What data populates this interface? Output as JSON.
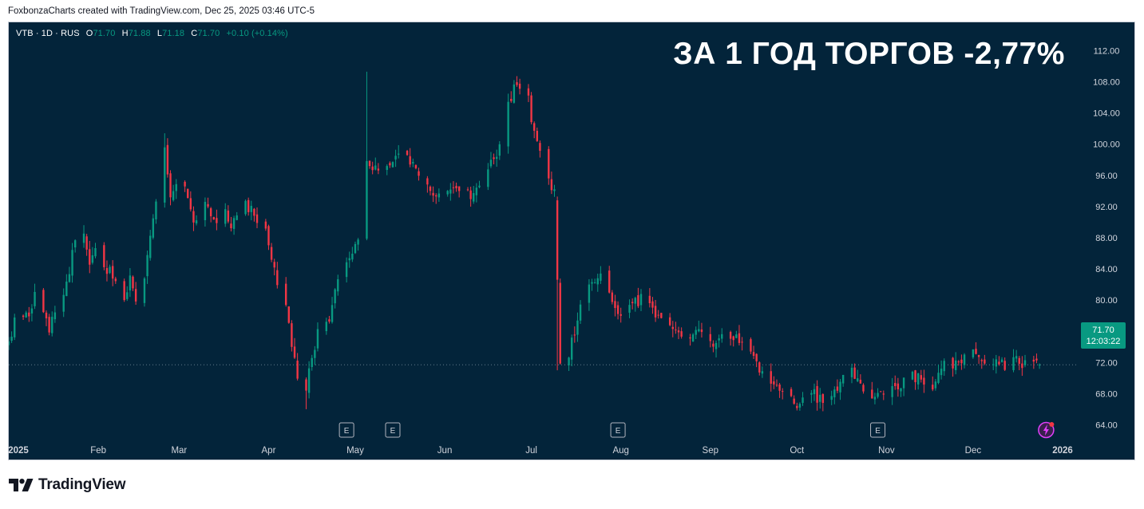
{
  "credit": "FoxbonzaCharts created with TradingView.com, Dec 25, 2025 03:46 UTC-5",
  "legend": {
    "symbol": "VTB · 1D · RUS",
    "o_label": "O",
    "o_value": "71.70",
    "h_label": "H",
    "h_value": "71.88",
    "l_label": "L",
    "l_value": "71.18",
    "c_label": "C",
    "c_value": "71.70",
    "change": "+0.10 (+0.14%)"
  },
  "headline": "ЗА 1 ГОД ТОРГОВ -2,77%",
  "last_price": {
    "price": "71.70",
    "countdown": "12:03:22"
  },
  "logo_text": "TradingView",
  "colors": {
    "background": "#03243a",
    "up": "#089981",
    "down": "#f23645",
    "text": "#ffffff",
    "axis_text": "#d1d4dc"
  },
  "chart_data": {
    "type": "candlestick",
    "symbol": "VTB",
    "interval": "1D",
    "y_ticks": [
      "64.00",
      "68.00",
      "72.00",
      "76.00",
      "80.00",
      "84.00",
      "88.00",
      "92.00",
      "96.00",
      "100.00",
      "104.00",
      "108.00",
      "112.00"
    ],
    "ylim": [
      62,
      114.2
    ],
    "x_ticks": [
      {
        "label": "2025",
        "date": "2025-01-01",
        "bold": true
      },
      {
        "label": "Feb",
        "date": "2025-02-01"
      },
      {
        "label": "Mar",
        "date": "2025-03-01"
      },
      {
        "label": "Apr",
        "date": "2025-04-01"
      },
      {
        "label": "May",
        "date": "2025-05-01"
      },
      {
        "label": "Jun",
        "date": "2025-06-01"
      },
      {
        "label": "Jul",
        "date": "2025-07-01"
      },
      {
        "label": "Aug",
        "date": "2025-08-01"
      },
      {
        "label": "Sep",
        "date": "2025-09-01"
      },
      {
        "label": "Oct",
        "date": "2025-10-01"
      },
      {
        "label": "Nov",
        "date": "2025-11-01"
      },
      {
        "label": "Dec",
        "date": "2025-12-01"
      },
      {
        "label": "2026",
        "date": "2026-01-01",
        "bold": true
      }
    ],
    "earnings_markers": [
      {
        "date": "2025-04-28",
        "label": "E"
      },
      {
        "date": "2025-05-14",
        "label": "E"
      },
      {
        "date": "2025-07-31",
        "label": "E"
      },
      {
        "date": "2025-10-29",
        "label": "E"
      }
    ],
    "dividend_marker": {
      "date": "2025-12-31"
    },
    "last_close": 71.7,
    "path": [
      [
        "2025-01-01",
        74.0
      ],
      [
        "2025-01-03",
        77.0
      ],
      [
        "2025-01-08",
        78.5
      ],
      [
        "2025-01-10",
        80.5
      ],
      [
        "2025-01-13",
        78.0
      ],
      [
        "2025-01-15",
        76.5
      ],
      [
        "2025-01-17",
        79.0
      ],
      [
        "2025-01-20",
        80.0
      ],
      [
        "2025-01-22",
        84.0
      ],
      [
        "2025-01-24",
        87.5
      ],
      [
        "2025-01-27",
        88.0
      ],
      [
        "2025-01-29",
        85.0
      ],
      [
        "2025-01-31",
        86.5
      ],
      [
        "2025-02-03",
        83.5
      ],
      [
        "2025-02-05",
        84.0
      ],
      [
        "2025-02-07",
        82.0
      ],
      [
        "2025-02-10",
        80.5
      ],
      [
        "2025-02-12",
        82.5
      ],
      [
        "2025-02-14",
        80.0
      ],
      [
        "2025-02-17",
        82.0
      ],
      [
        "2025-02-19",
        88.0
      ],
      [
        "2025-02-21",
        92.0
      ],
      [
        "2025-02-24",
        99.0
      ],
      [
        "2025-02-26",
        93.0
      ],
      [
        "2025-02-28",
        95.0
      ],
      [
        "2025-03-03",
        94.0
      ],
      [
        "2025-03-05",
        91.0
      ],
      [
        "2025-03-07",
        90.0
      ],
      [
        "2025-03-10",
        92.0
      ],
      [
        "2025-03-12",
        91.0
      ],
      [
        "2025-03-14",
        90.5
      ],
      [
        "2025-03-17",
        91.5
      ],
      [
        "2025-03-19",
        90.0
      ],
      [
        "2025-03-21",
        91.0
      ],
      [
        "2025-03-24",
        92.5
      ],
      [
        "2025-03-26",
        91.5
      ],
      [
        "2025-03-28",
        90.0
      ],
      [
        "2025-03-31",
        89.5
      ],
      [
        "2025-04-02",
        85.0
      ],
      [
        "2025-04-04",
        82.0
      ],
      [
        "2025-04-07",
        79.0
      ],
      [
        "2025-04-09",
        74.0
      ],
      [
        "2025-04-11",
        70.0
      ],
      [
        "2025-04-14",
        68.5
      ],
      [
        "2025-04-16",
        73.0
      ],
      [
        "2025-04-18",
        75.5
      ],
      [
        "2025-04-21",
        77.0
      ],
      [
        "2025-04-23",
        79.0
      ],
      [
        "2025-04-25",
        83.0
      ],
      [
        "2025-04-28",
        85.5
      ],
      [
        "2025-05-02",
        87.0
      ],
      [
        "2025-05-05",
        98.5
      ],
      [
        "2025-05-07",
        97.0
      ],
      [
        "2025-05-09",
        96.5
      ],
      [
        "2025-05-12",
        97.5
      ],
      [
        "2025-05-14",
        98.5
      ],
      [
        "2025-05-16",
        99.5
      ],
      [
        "2025-05-19",
        98.0
      ],
      [
        "2025-05-21",
        97.5
      ],
      [
        "2025-05-23",
        96.5
      ],
      [
        "2025-05-26",
        95.5
      ],
      [
        "2025-05-28",
        94.0
      ],
      [
        "2025-05-30",
        93.0
      ],
      [
        "2025-06-02",
        93.5
      ],
      [
        "2025-06-04",
        95.0
      ],
      [
        "2025-06-06",
        93.5
      ],
      [
        "2025-06-09",
        94.0
      ],
      [
        "2025-06-11",
        93.5
      ],
      [
        "2025-06-13",
        95.0
      ],
      [
        "2025-06-16",
        97.5
      ],
      [
        "2025-06-18",
        98.5
      ],
      [
        "2025-06-20",
        99.5
      ],
      [
        "2025-06-23",
        105.0
      ],
      [
        "2025-06-25",
        107.5
      ],
      [
        "2025-06-27",
        107.0
      ],
      [
        "2025-06-30",
        106.0
      ],
      [
        "2025-07-02",
        101.0
      ],
      [
        "2025-07-04",
        99.0
      ],
      [
        "2025-07-07",
        96.0
      ],
      [
        "2025-07-09",
        93.5
      ],
      [
        "2025-07-11",
        72.0
      ],
      [
        "2025-07-14",
        73.0
      ],
      [
        "2025-07-16",
        76.0
      ],
      [
        "2025-07-18",
        79.0
      ],
      [
        "2025-07-21",
        82.0
      ],
      [
        "2025-07-23",
        83.0
      ],
      [
        "2025-07-25",
        83.5
      ],
      [
        "2025-07-28",
        81.0
      ],
      [
        "2025-07-30",
        78.5
      ],
      [
        "2025-08-01",
        77.5
      ],
      [
        "2025-08-04",
        79.0
      ],
      [
        "2025-08-06",
        79.5
      ],
      [
        "2025-08-08",
        80.0
      ],
      [
        "2025-08-11",
        79.5
      ],
      [
        "2025-08-13",
        78.5
      ],
      [
        "2025-08-15",
        77.0
      ],
      [
        "2025-08-18",
        76.5
      ],
      [
        "2025-08-20",
        76.0
      ],
      [
        "2025-08-22",
        75.5
      ],
      [
        "2025-08-25",
        74.5
      ],
      [
        "2025-08-27",
        75.5
      ],
      [
        "2025-08-29",
        75.5
      ],
      [
        "2025-09-01",
        75.0
      ],
      [
        "2025-09-03",
        74.5
      ],
      [
        "2025-09-05",
        75.5
      ],
      [
        "2025-09-08",
        75.0
      ],
      [
        "2025-09-10",
        75.5
      ],
      [
        "2025-09-12",
        74.0
      ],
      [
        "2025-09-15",
        73.0
      ],
      [
        "2025-09-17",
        72.0
      ],
      [
        "2025-09-19",
        71.0
      ],
      [
        "2025-09-22",
        70.0
      ],
      [
        "2025-09-24",
        69.0
      ],
      [
        "2025-09-26",
        68.0
      ],
      [
        "2025-09-29",
        67.0
      ],
      [
        "2025-10-01",
        66.5
      ],
      [
        "2025-10-03",
        67.5
      ],
      [
        "2025-10-06",
        68.5
      ],
      [
        "2025-10-08",
        67.5
      ],
      [
        "2025-10-10",
        67.0
      ],
      [
        "2025-10-13",
        67.5
      ],
      [
        "2025-10-15",
        68.5
      ],
      [
        "2025-10-17",
        71.0
      ],
      [
        "2025-10-20",
        71.0
      ],
      [
        "2025-10-22",
        69.5
      ],
      [
        "2025-10-24",
        68.0
      ],
      [
        "2025-10-27",
        67.0
      ],
      [
        "2025-10-29",
        67.5
      ],
      [
        "2025-10-31",
        68.5
      ],
      [
        "2025-11-03",
        68.5
      ],
      [
        "2025-11-05",
        69.0
      ],
      [
        "2025-11-07",
        69.5
      ],
      [
        "2025-11-10",
        70.0
      ],
      [
        "2025-11-12",
        70.0
      ],
      [
        "2025-11-14",
        69.5
      ],
      [
        "2025-11-17",
        69.0
      ],
      [
        "2025-11-19",
        70.5
      ],
      [
        "2025-11-21",
        72.0
      ],
      [
        "2025-11-24",
        72.0
      ],
      [
        "2025-11-26",
        71.5
      ],
      [
        "2025-11-28",
        72.5
      ],
      [
        "2025-12-01",
        73.0
      ],
      [
        "2025-12-03",
        72.5
      ],
      [
        "2025-12-05",
        72.5
      ],
      [
        "2025-12-08",
        72.0
      ],
      [
        "2025-12-10",
        72.0
      ],
      [
        "2025-12-12",
        71.5
      ],
      [
        "2025-12-15",
        72.5
      ],
      [
        "2025-12-17",
        72.5
      ],
      [
        "2025-12-19",
        71.5
      ],
      [
        "2025-12-22",
        71.6
      ],
      [
        "2025-12-24",
        71.7
      ]
    ]
  }
}
